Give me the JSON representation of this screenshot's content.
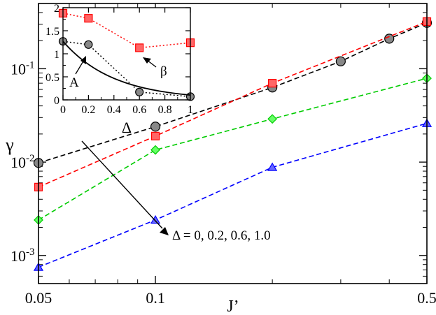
{
  "chart_data": [
    {
      "type": "line",
      "xlabel": "J’",
      "ylabel": "γ",
      "xscale": "log",
      "yscale": "log",
      "xlim": [
        0.05,
        0.5
      ],
      "ylim": [
        0.0005,
        0.5
      ],
      "xticks": [
        {
          "value": 0.05,
          "label": "0.05"
        },
        {
          "value": 0.1,
          "label": "0.1"
        },
        {
          "value": 0.5,
          "label": "0.5"
        }
      ],
      "yticks": [
        {
          "value": 0.001,
          "base": "10",
          "exp": "-3"
        },
        {
          "value": 0.01,
          "base": "10",
          "exp": "-2"
        },
        {
          "value": 0.1,
          "base": "10",
          "exp": "-1"
        }
      ],
      "series": [
        {
          "marker": "circle",
          "color": "#000000",
          "fill": "#888888",
          "x": [
            0.05,
            0.1,
            0.2,
            0.3,
            0.4,
            0.5
          ],
          "y": [
            0.0098,
            0.024,
            0.063,
            0.12,
            0.21,
            0.31
          ]
        },
        {
          "marker": "square",
          "color": "#ff0000",
          "fill": "#ff6666",
          "x": [
            0.05,
            0.1,
            0.2,
            0.5
          ],
          "y": [
            0.0054,
            0.019,
            0.07,
            0.32
          ]
        },
        {
          "marker": "diamond",
          "color": "#00cc00",
          "fill": "#66ff66",
          "x": [
            0.05,
            0.1,
            0.2,
            0.5
          ],
          "y": [
            0.0024,
            0.0135,
            0.029,
            0.079
          ]
        },
        {
          "marker": "triangle",
          "color": "#0000ff",
          "fill": "#6666ff",
          "x": [
            0.05,
            0.1,
            0.2,
            0.5
          ],
          "y": [
            0.00075,
            0.0024,
            0.0088,
            0.026
          ]
        }
      ],
      "annotation": {
        "text": "Δ = 0, 0.2, 0.6, 1.0"
      },
      "grid": false
    },
    {
      "type": "line",
      "placement": "inset top-left",
      "xlabel": "Δ",
      "xlim": [
        0,
        1
      ],
      "ylim": [
        0,
        2
      ],
      "xticks": [
        "0",
        "0.2",
        "0.4",
        "0.6",
        "0.8",
        "1"
      ],
      "xtick_values": [
        0,
        0.2,
        0.4,
        0.6,
        0.8,
        1
      ],
      "yticks": [
        "0",
        "0.5",
        "1",
        "1.5",
        "2"
      ],
      "ytick_values": [
        0,
        0.5,
        1,
        1.5,
        2
      ],
      "series": [
        {
          "name": "A",
          "marker": "circle",
          "color": "#000000",
          "fill": "#888888",
          "style": "dotted",
          "x": [
            0,
            0.2,
            0.6,
            1.0
          ],
          "y": [
            1.27,
            1.2,
            0.17,
            0.07
          ]
        },
        {
          "name": "β",
          "marker": "square",
          "color": "#ff0000",
          "fill": "#ff6666",
          "style": "dotted",
          "x": [
            0,
            0.2,
            0.6,
            1.0
          ],
          "y": [
            1.88,
            1.77,
            1.13,
            1.24
          ]
        },
        {
          "marker": "none",
          "color": "#000000",
          "style": "solid",
          "function": "1.27*exp(-2.5*x)"
        }
      ],
      "labels": [
        "A",
        "β"
      ]
    }
  ]
}
